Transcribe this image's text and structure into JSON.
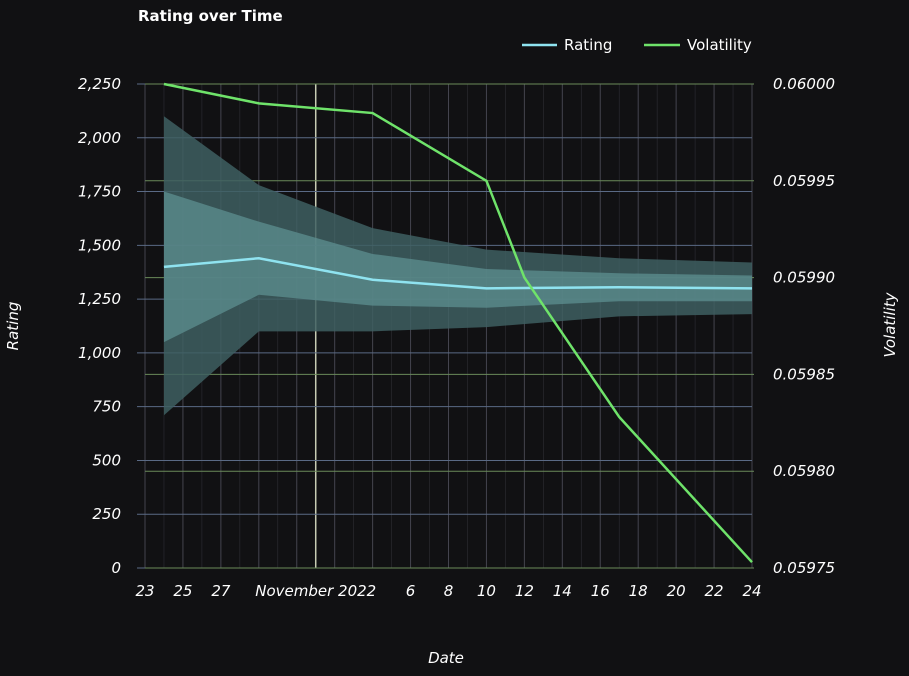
{
  "chart_data": {
    "type": "line",
    "title": "Rating over Time",
    "xlabel": "Date",
    "ylabel": "Rating",
    "y2label": "Volatility",
    "x_ticks": [
      "23",
      "25",
      "27",
      "November 2022",
      "6",
      "8",
      "10",
      "12",
      "14",
      "16",
      "18",
      "20",
      "22",
      "24"
    ],
    "y_ticks": [
      "0",
      "250",
      "500",
      "750",
      "1,000",
      "1,250",
      "1,500",
      "1,750",
      "2,000",
      "2,250"
    ],
    "y2_ticks": [
      "0.05975",
      "0.05980",
      "0.05985",
      "0.05990",
      "0.05995",
      "0.06000"
    ],
    "ylim": [
      0,
      2250
    ],
    "y2lim": [
      0.05975,
      0.06
    ],
    "legend_position": "top-right",
    "x": [
      "2022-10-24",
      "2022-10-29",
      "2022-11-04",
      "2022-11-10",
      "2022-11-17",
      "2022-11-24"
    ],
    "series": [
      {
        "name": "Rating",
        "axis": "left",
        "color": "#8fe3f0",
        "values": [
          1400,
          1440,
          1340,
          1300,
          1305,
          1300
        ],
        "band_outer_upper": [
          2100,
          1780,
          1580,
          1480,
          1440,
          1420
        ],
        "band_outer_lower": [
          710,
          1100,
          1100,
          1120,
          1170,
          1180
        ],
        "band_inner_upper": [
          1750,
          1610,
          1460,
          1390,
          1370,
          1360
        ],
        "band_inner_lower": [
          1050,
          1270,
          1220,
          1210,
          1240,
          1240
        ]
      },
      {
        "name": "Volatility",
        "axis": "right",
        "color": "#6fe36a",
        "x": [
          "2022-10-24",
          "2022-10-29",
          "2022-11-04",
          "2022-11-10",
          "2022-11-12",
          "2022-11-17",
          "2022-11-24"
        ],
        "values": [
          0.06,
          0.05999,
          0.059985,
          0.05995,
          0.0599,
          0.059828,
          0.059753
        ]
      }
    ],
    "colors": {
      "background": "#111113",
      "grid_left": "#5a6a85",
      "grid_right": "#6a8a5a",
      "grid_x": "#4a4a55",
      "month_line": "#c8ccb4",
      "band_outer": "#3e5f61",
      "band_inner": "#5d8f90"
    }
  }
}
